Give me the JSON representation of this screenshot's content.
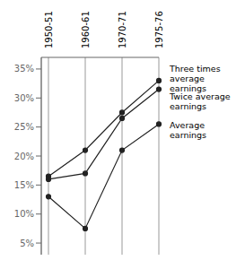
{
  "chart_data": {
    "type": "line",
    "categories": [
      "1950-51",
      "1960-61",
      "1970-71",
      "1975-76"
    ],
    "series": [
      {
        "values": [
          16.5,
          21.0,
          27.5,
          33.0
        ]
      },
      {
        "values": [
          16.0,
          17.0,
          26.5,
          31.5
        ]
      },
      {
        "values": [
          13.0,
          7.5,
          21.0,
          25.5
        ]
      }
    ],
    "color": "#222222",
    "marker": "circle",
    "ylim": [
      3,
      37
    ],
    "yticks": [
      {
        "value": 5,
        "label": "5%"
      },
      {
        "value": 10,
        "label": "10%"
      },
      {
        "value": 15,
        "label": "15%"
      },
      {
        "value": 20,
        "label": "20%"
      },
      {
        "value": 25,
        "label": "25%"
      },
      {
        "value": 30,
        "label": "30%"
      },
      {
        "value": 35,
        "label": "35%"
      }
    ],
    "grid": true,
    "annotations": [
      {
        "text": "Three times\naverage\nearnings",
        "y": 33.5
      },
      {
        "text": "Twice average\nearnings",
        "y": 29.5
      },
      {
        "text": "Average\nearnings",
        "y": 24.5
      }
    ]
  }
}
